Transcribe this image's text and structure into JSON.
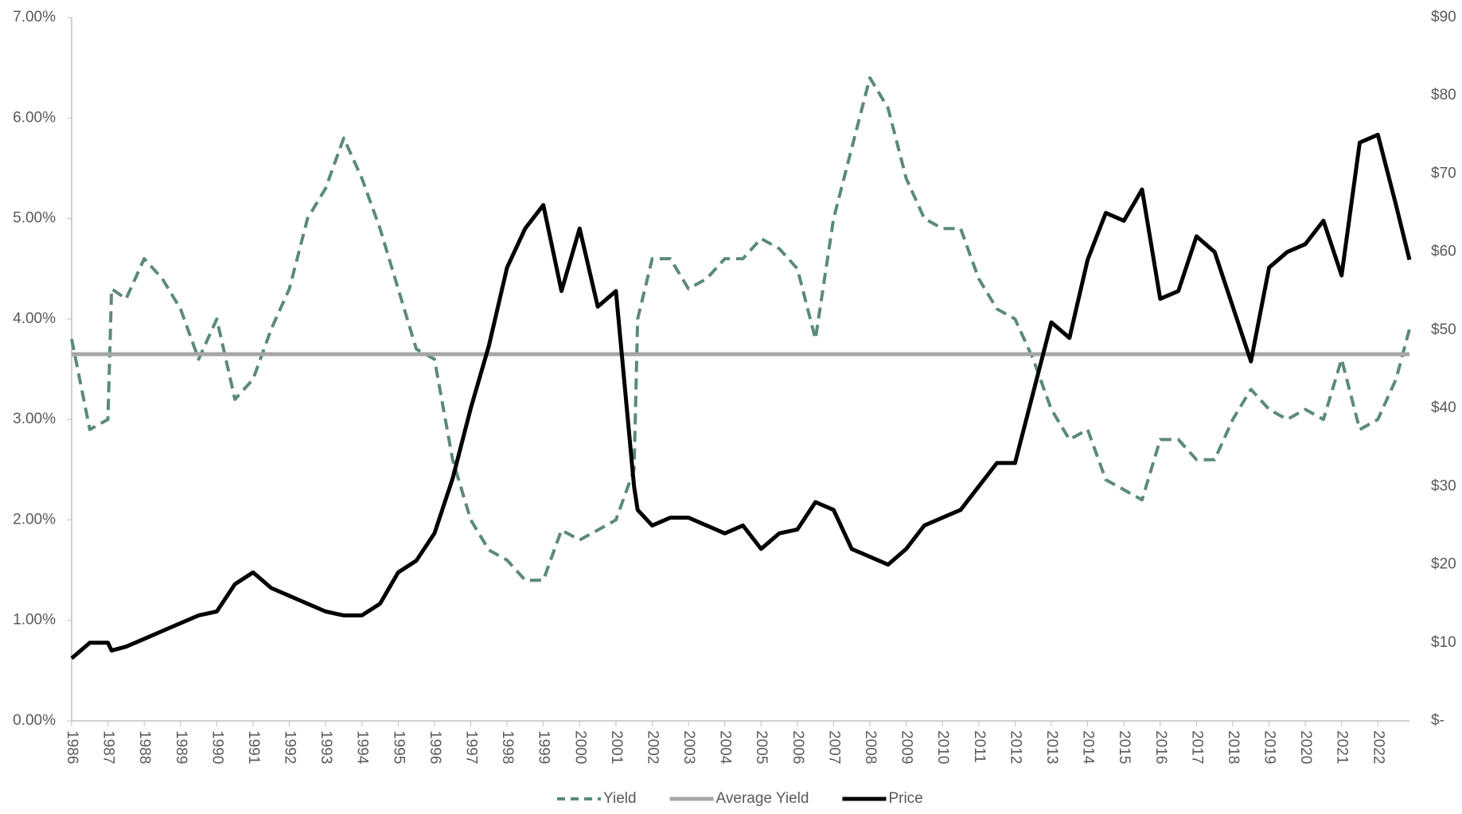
{
  "chart_data": {
    "type": "line",
    "series": [
      {
        "name": "Yield",
        "color": "#5b8a7a",
        "dash": true,
        "axis": "y",
        "x": [
          1986,
          1986.5,
          1987,
          1987.1,
          1987.5,
          1988,
          1988.5,
          1989,
          1989.5,
          1990,
          1990.5,
          1991,
          1991.5,
          1992,
          1992.5,
          1993,
          1993.5,
          1994,
          1994.5,
          1995,
          1995.5,
          1996,
          1996.5,
          1997,
          1997.5,
          1998,
          1998.5,
          1999,
          1999.5,
          2000,
          2000.5,
          2001,
          2001.5,
          2001.6,
          2002,
          2002.5,
          2003,
          2003.5,
          2004,
          2004.5,
          2005,
          2005.5,
          2006,
          2006.5,
          2007,
          2007.5,
          2008,
          2008.5,
          2009,
          2009.5,
          2010,
          2010.5,
          2011,
          2011.5,
          2012,
          2012.5,
          2013,
          2013.5,
          2014,
          2014.5,
          2015,
          2015.5,
          2016,
          2016.5,
          2017,
          2017.5,
          2018,
          2018.5,
          2019,
          2019.5,
          2020,
          2020.5,
          2021,
          2021.5,
          2022,
          2022.5,
          2022.87
        ],
        "values": [
          3.8,
          2.9,
          3.0,
          4.3,
          4.2,
          4.6,
          4.4,
          4.1,
          3.6,
          4.0,
          3.2,
          3.4,
          3.9,
          4.3,
          5.0,
          5.3,
          5.8,
          5.4,
          4.9,
          4.3,
          3.7,
          3.6,
          2.6,
          2.0,
          1.7,
          1.6,
          1.4,
          1.4,
          1.9,
          1.8,
          1.9,
          2.0,
          2.5,
          4.0,
          4.6,
          4.6,
          4.3,
          4.4,
          4.6,
          4.6,
          4.8,
          4.7,
          4.5,
          3.8,
          5.0,
          5.7,
          6.4,
          6.1,
          5.4,
          5.0,
          4.9,
          4.9,
          4.4,
          4.1,
          4.0,
          3.6,
          3.1,
          2.8,
          2.9,
          2.4,
          2.3,
          2.2,
          2.8,
          2.8,
          2.6,
          2.6,
          3.0,
          3.3,
          3.1,
          3.0,
          3.1,
          3.0,
          3.6,
          2.9,
          3.0,
          3.4,
          3.9
        ]
      },
      {
        "name": "Average Yield",
        "color": "#a6a6a6",
        "dash": false,
        "axis": "y",
        "x": [
          1986,
          2022.87
        ],
        "values": [
          3.65,
          3.65
        ]
      },
      {
        "name": "Price",
        "color": "#000000",
        "dash": false,
        "axis": "y2",
        "x": [
          1986,
          1986.5,
          1987,
          1987.1,
          1987.5,
          1988,
          1988.5,
          1989,
          1989.5,
          1990,
          1990.5,
          1991,
          1991.5,
          1992,
          1992.5,
          1993,
          1993.5,
          1994,
          1994.5,
          1995,
          1995.5,
          1996,
          1996.5,
          1997,
          1997.5,
          1998,
          1998.5,
          1999,
          1999.5,
          2000,
          2000.5,
          2001,
          2001.5,
          2001.6,
          2002,
          2002.5,
          2003,
          2003.5,
          2004,
          2004.5,
          2005,
          2005.5,
          2006,
          2006.5,
          2007,
          2007.5,
          2008,
          2008.5,
          2009,
          2009.5,
          2010,
          2010.5,
          2011,
          2011.5,
          2012,
          2012.5,
          2013,
          2013.5,
          2014,
          2014.5,
          2015,
          2015.5,
          2016,
          2016.5,
          2017,
          2017.5,
          2018,
          2018.5,
          2019,
          2019.5,
          2020,
          2020.5,
          2021,
          2021.5,
          2022,
          2022.5,
          2022.87
        ],
        "values": [
          8,
          10,
          10,
          9,
          9.5,
          10.5,
          11.5,
          12.5,
          13.5,
          14,
          17.5,
          19,
          17,
          16,
          15,
          14,
          13.5,
          13.5,
          15,
          19,
          20.5,
          24,
          31,
          40,
          48,
          58,
          63,
          66,
          55,
          63,
          53,
          55,
          30,
          27,
          25,
          26,
          26,
          25,
          24,
          25,
          22,
          24,
          24.5,
          28,
          27,
          22,
          21,
          20,
          22,
          25,
          26,
          27,
          30,
          33,
          33,
          42,
          51,
          49,
          59,
          65,
          64,
          68,
          54,
          55,
          62,
          60,
          53,
          46,
          58,
          60,
          61,
          64,
          57,
          74,
          75,
          66,
          59
        ]
      }
    ],
    "xlim": [
      1986,
      2022.87
    ],
    "xticks": [
      1986,
      1987,
      1988,
      1989,
      1990,
      1991,
      1992,
      1993,
      1994,
      1995,
      1996,
      1997,
      1998,
      1999,
      2000,
      2001,
      2002,
      2003,
      2004,
      2005,
      2006,
      2007,
      2008,
      2009,
      2010,
      2011,
      2012,
      2013,
      2014,
      2015,
      2016,
      2017,
      2018,
      2019,
      2020,
      2021,
      2022
    ],
    "ylim": [
      0,
      7
    ],
    "yticks": [
      {
        "value": 0,
        "label": "0.00%"
      },
      {
        "value": 1,
        "label": "1.00%"
      },
      {
        "value": 2,
        "label": "2.00%"
      },
      {
        "value": 3,
        "label": "3.00%"
      },
      {
        "value": 4,
        "label": "4.00%"
      },
      {
        "value": 5,
        "label": "5.00%"
      },
      {
        "value": 6,
        "label": "6.00%"
      },
      {
        "value": 7,
        "label": "7.00%"
      }
    ],
    "y2lim": [
      0,
      90
    ],
    "y2ticks": [
      {
        "value": 0,
        "label": "$-"
      },
      {
        "value": 10,
        "label": "$10"
      },
      {
        "value": 20,
        "label": "$20"
      },
      {
        "value": 30,
        "label": "$30"
      },
      {
        "value": 40,
        "label": "$40"
      },
      {
        "value": 50,
        "label": "$50"
      },
      {
        "value": 60,
        "label": "$60"
      },
      {
        "value": 70,
        "label": "$70"
      },
      {
        "value": 80,
        "label": "$80"
      },
      {
        "value": 90,
        "label": "$90"
      }
    ],
    "legend": "bottom"
  }
}
